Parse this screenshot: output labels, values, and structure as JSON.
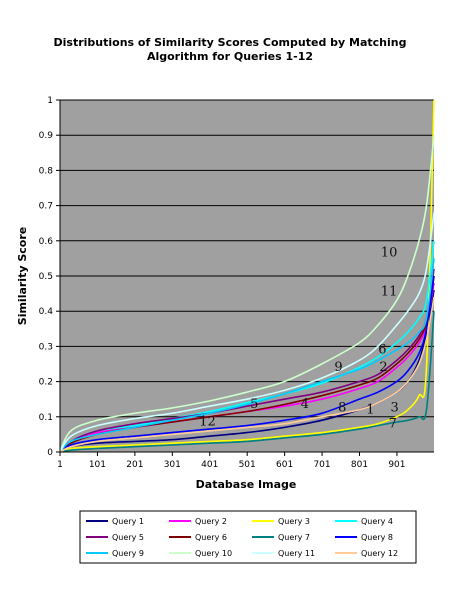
{
  "chart_data": {
    "type": "line",
    "title_lines": [
      "Distributions of Similarity Scores Computed by Matching",
      "Algorithm for Queries 1-12"
    ],
    "xlabel": "Database Image",
    "ylabel": "Similarity Score",
    "xlim": [
      1,
      1000
    ],
    "ylim": [
      0,
      1
    ],
    "x_ticks": [
      "1",
      "101",
      "201",
      "301",
      "401",
      "501",
      "601",
      "701",
      "801",
      "901"
    ],
    "x_tick_values": [
      1,
      101,
      201,
      301,
      401,
      501,
      601,
      701,
      801,
      901
    ],
    "y_ticks": [
      "0",
      "0.1",
      "0.2",
      "0.3",
      "0.4",
      "0.5",
      "0.6",
      "0.7",
      "0.8",
      "0.9",
      "1"
    ],
    "y_tick_values": [
      0,
      0.1,
      0.2,
      0.3,
      0.4,
      0.5,
      0.6,
      0.7,
      0.8,
      0.9,
      1
    ],
    "grid": "horizontal",
    "plot_background": "#a0a0a0",
    "legend_position": "bottom",
    "x": [
      1,
      30,
      100,
      200,
      300,
      400,
      500,
      600,
      700,
      800,
      850,
      900,
      930,
      960,
      980,
      1000
    ],
    "series": [
      {
        "name": "Query 1",
        "color": "#000080",
        "values": [
          0,
          0.015,
          0.025,
          0.03,
          0.035,
          0.045,
          0.055,
          0.07,
          0.09,
          0.12,
          0.14,
          0.17,
          0.2,
          0.26,
          0.34,
          0.46
        ]
      },
      {
        "name": "Query 2",
        "color": "#ff00ff",
        "values": [
          0,
          0.03,
          0.055,
          0.07,
          0.085,
          0.1,
          0.115,
          0.13,
          0.15,
          0.18,
          0.2,
          0.24,
          0.27,
          0.31,
          0.36,
          0.48
        ]
      },
      {
        "name": "Query 3",
        "color": "#ffff00",
        "values": [
          0,
          0.01,
          0.015,
          0.02,
          0.025,
          0.03,
          0.035,
          0.045,
          0.055,
          0.07,
          0.08,
          0.1,
          0.12,
          0.16,
          0.24,
          1.0
        ]
      },
      {
        "name": "Query 4",
        "color": "#00ffff",
        "values": [
          0,
          0.03,
          0.06,
          0.075,
          0.095,
          0.115,
          0.14,
          0.165,
          0.195,
          0.24,
          0.27,
          0.31,
          0.34,
          0.38,
          0.43,
          0.6
        ]
      },
      {
        "name": "Query 5",
        "color": "#800080",
        "values": [
          0,
          0.03,
          0.06,
          0.08,
          0.095,
          0.11,
          0.13,
          0.15,
          0.17,
          0.2,
          0.22,
          0.26,
          0.29,
          0.33,
          0.38,
          0.52
        ]
      },
      {
        "name": "Query 6",
        "color": "#800000",
        "values": [
          0,
          0.025,
          0.05,
          0.07,
          0.085,
          0.1,
          0.115,
          0.135,
          0.16,
          0.19,
          0.21,
          0.25,
          0.28,
          0.32,
          0.37,
          0.5
        ]
      },
      {
        "name": "Query 7",
        "color": "#008080",
        "values": [
          0,
          0.005,
          0.01,
          0.015,
          0.02,
          0.025,
          0.03,
          0.04,
          0.05,
          0.065,
          0.075,
          0.085,
          0.09,
          0.1,
          0.12,
          0.4
        ]
      },
      {
        "name": "Query 8",
        "color": "#0000ff",
        "values": [
          0,
          0.02,
          0.035,
          0.045,
          0.055,
          0.065,
          0.075,
          0.09,
          0.11,
          0.15,
          0.17,
          0.2,
          0.23,
          0.28,
          0.35,
          0.5
        ]
      },
      {
        "name": "Query 9",
        "color": "#00ccff",
        "values": [
          0,
          0.03,
          0.05,
          0.07,
          0.09,
          0.11,
          0.135,
          0.165,
          0.2,
          0.235,
          0.26,
          0.29,
          0.31,
          0.34,
          0.38,
          0.55
        ]
      },
      {
        "name": "Query 10",
        "color": "#ccffcc",
        "values": [
          0,
          0.06,
          0.09,
          0.11,
          0.125,
          0.145,
          0.17,
          0.2,
          0.25,
          0.31,
          0.36,
          0.43,
          0.5,
          0.6,
          0.7,
          0.9
        ]
      },
      {
        "name": "Query 11",
        "color": "#ccffff",
        "values": [
          0,
          0.045,
          0.075,
          0.095,
          0.11,
          0.13,
          0.15,
          0.175,
          0.21,
          0.26,
          0.3,
          0.36,
          0.4,
          0.45,
          0.52,
          0.68
        ]
      },
      {
        "name": "Query 12",
        "color": "#ffcc99",
        "values": [
          0,
          0.015,
          0.03,
          0.04,
          0.05,
          0.06,
          0.07,
          0.08,
          0.1,
          0.12,
          0.14,
          0.17,
          0.2,
          0.25,
          0.32,
          0.44
        ]
      }
    ],
    "annotations": [
      {
        "text": "10",
        "x": 880,
        "y": 0.555
      },
      {
        "text": "11",
        "x": 880,
        "y": 0.445
      },
      {
        "text": "6",
        "x": 862,
        "y": 0.28
      },
      {
        "text": "9",
        "x": 745,
        "y": 0.23
      },
      {
        "text": "2",
        "x": 865,
        "y": 0.23
      },
      {
        "text": "5",
        "x": 520,
        "y": 0.125
      },
      {
        "text": "4",
        "x": 655,
        "y": 0.125
      },
      {
        "text": "8",
        "x": 755,
        "y": 0.115
      },
      {
        "text": "1",
        "x": 830,
        "y": 0.11
      },
      {
        "text": "3",
        "x": 895,
        "y": 0.115
      },
      {
        "text": "12",
        "x": 395,
        "y": 0.075
      },
      {
        "text": "7",
        "x": 890,
        "y": 0.07
      }
    ]
  }
}
